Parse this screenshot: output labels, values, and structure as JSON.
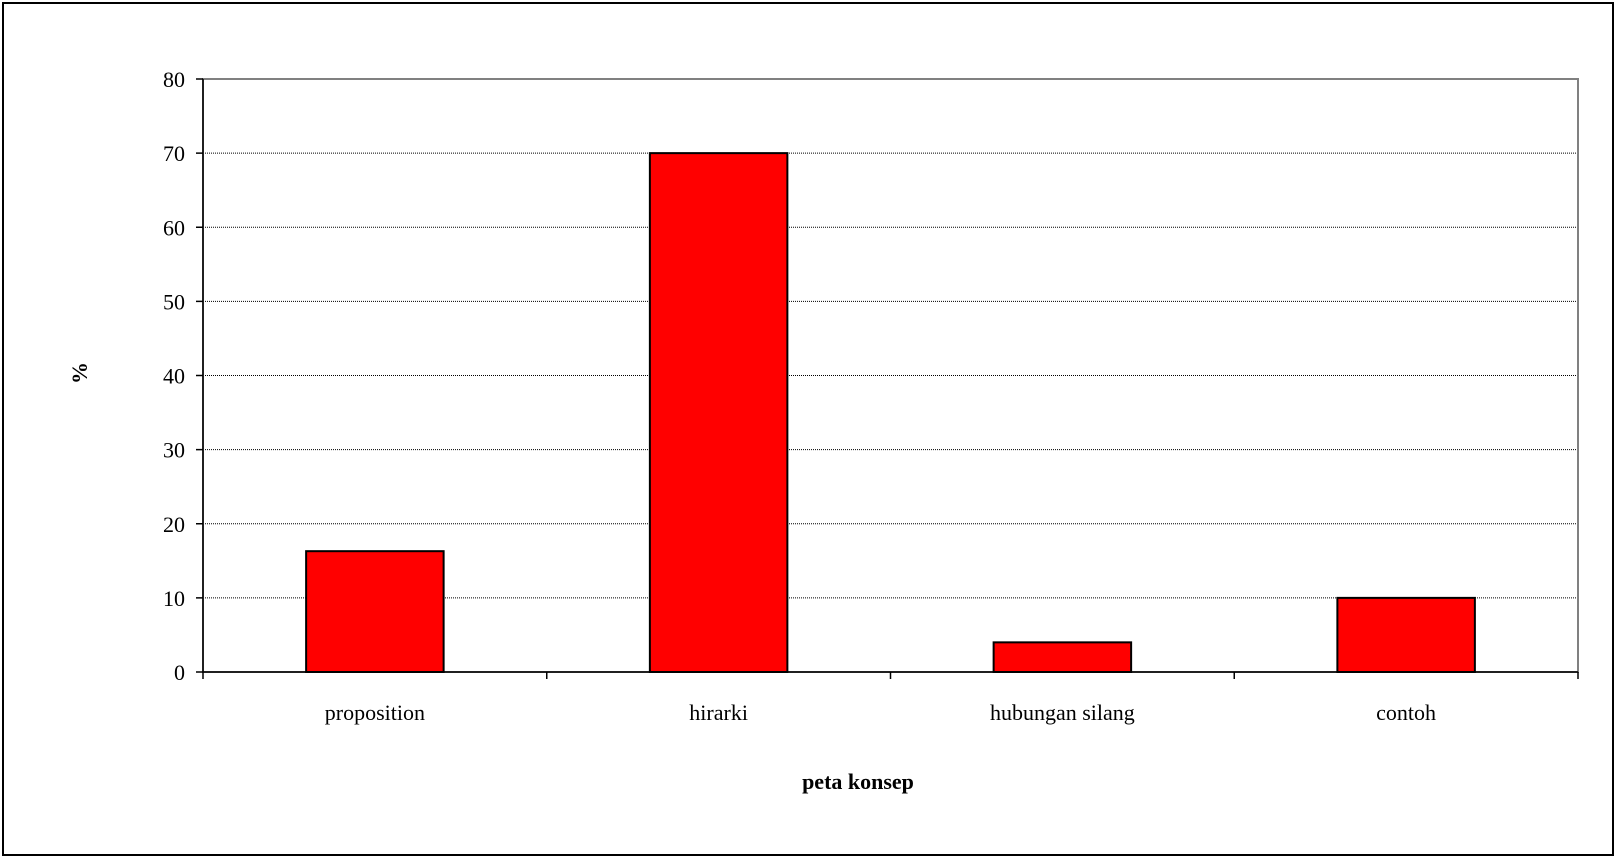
{
  "chart_data": {
    "type": "bar",
    "title": "",
    "xlabel": "peta konsep",
    "ylabel": "%",
    "categories": [
      "proposition",
      "hirarki",
      "hubungan silang",
      "contoh"
    ],
    "values": [
      16.3,
      70,
      4,
      10
    ],
    "ylim": [
      0,
      80
    ],
    "yticks": [
      0,
      10,
      20,
      30,
      40,
      50,
      60,
      70,
      80
    ],
    "ytick_labels": [
      "0",
      "10",
      "20",
      "30",
      "40",
      "50",
      "60",
      "70",
      "80"
    ],
    "grid": true,
    "legend": "none",
    "colors": {
      "bar": "#ff0000",
      "bar_edge": "#000000",
      "grid": "#000000",
      "axis": "#808080"
    }
  }
}
